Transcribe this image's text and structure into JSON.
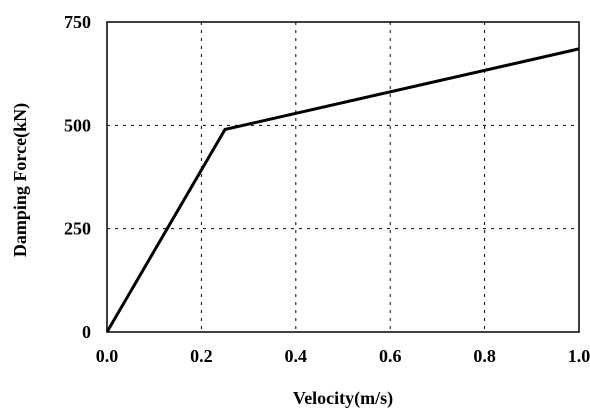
{
  "chart_data": {
    "type": "line",
    "title": "",
    "xlabel": "Velocity(m/s)",
    "ylabel": "Damping Force(kN)",
    "xlim": [
      0,
      1.0
    ],
    "ylim": [
      0,
      750
    ],
    "x_ticks": [
      0,
      0.2,
      0.4,
      0.6,
      0.8,
      1.0
    ],
    "x_tick_labels": [
      "0.0",
      "0.2",
      "0.4",
      "0.6",
      "0.8",
      "1.0"
    ],
    "y_ticks": [
      0,
      250,
      500,
      750
    ],
    "y_tick_labels": [
      "0",
      "250",
      "500",
      "750"
    ],
    "grid": true,
    "legend": "none",
    "series": [
      {
        "x": [
          0,
          0.25,
          1.0
        ],
        "y": [
          0,
          490,
          685
        ],
        "color": "#000000"
      }
    ]
  }
}
